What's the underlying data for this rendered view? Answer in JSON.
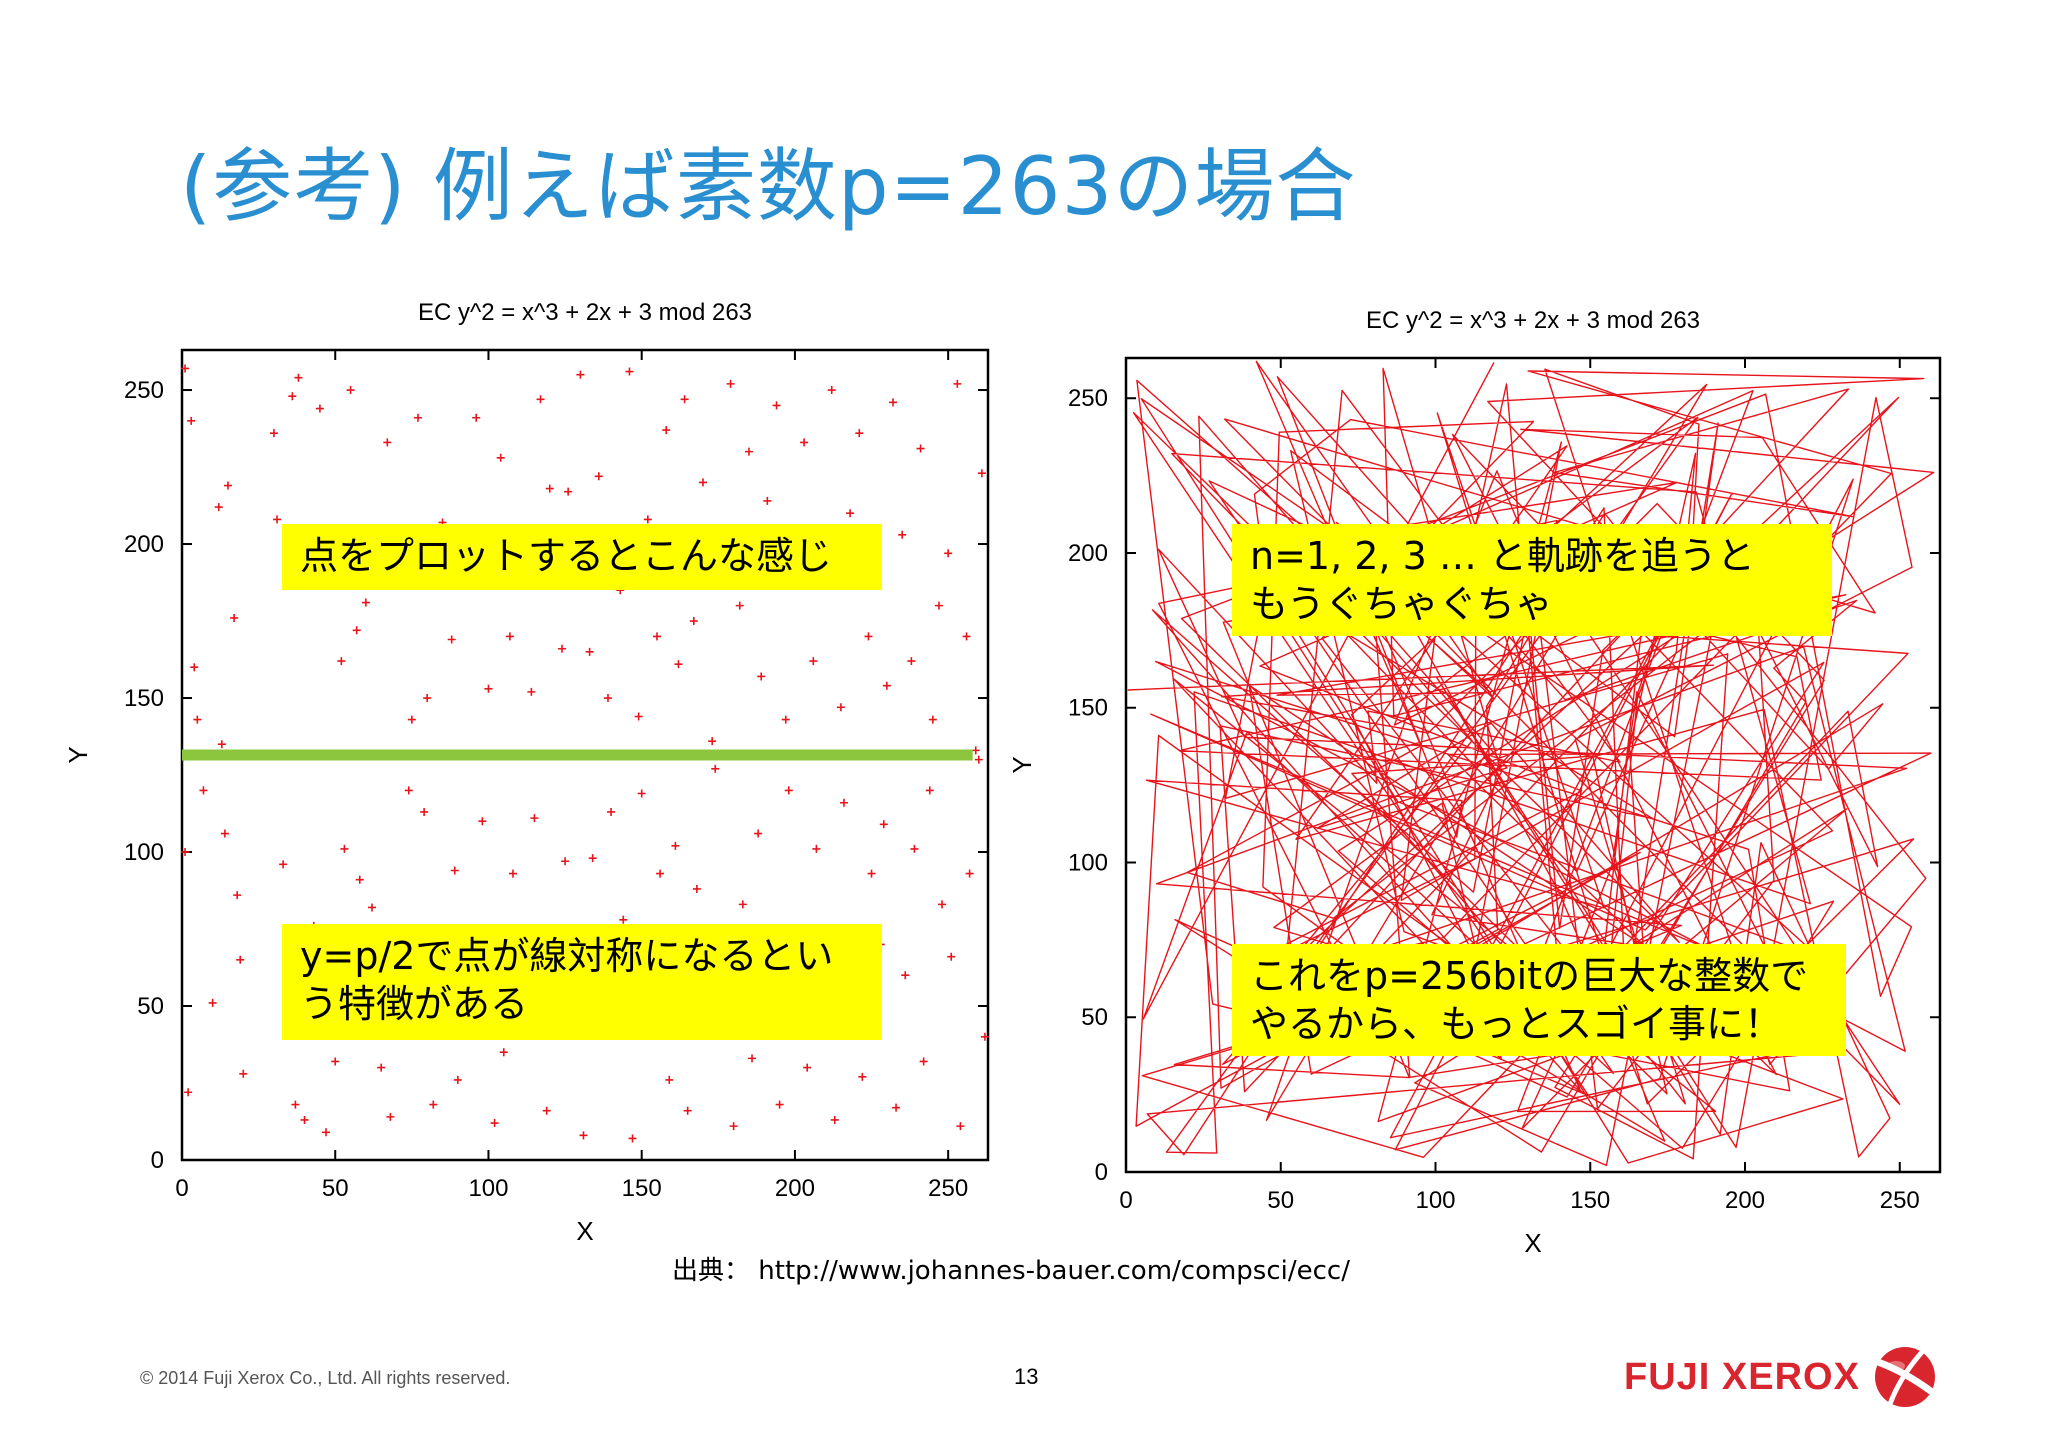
{
  "slide": {
    "title": "(参考) 例えば素数p=263の場合",
    "source": "出典： http://www.johannes-bauer.com/compsci/ecc/",
    "copyright": "© 2014 Fuji Xerox Co., Ltd. All rights reserved.",
    "page_number": "13",
    "logo_text": "FUJI XEROX",
    "logo_icon": "fuji-xerox-x-sphere-icon"
  },
  "callouts": {
    "left_top": "点をプロットするとこんな感じ",
    "left_bottom_1": "y=p/2で点が線対称になるとい",
    "left_bottom_2": "う特徴がある",
    "right_top_1": "n=1, 2, 3 … と軌跡を追うと",
    "right_top_2": "もうぐちゃぐちゃ",
    "right_bottom_1": "これをp=256bitの巨大な整数で",
    "right_bottom_2": "やるから、もっとスゴイ事に！"
  },
  "colors": {
    "title": "#2a8fd0",
    "points": "#e8141b",
    "symmetry_line": "#8cc63f",
    "callout_bg": "#ffff00"
  },
  "chart_data": [
    {
      "type": "scatter",
      "title": "EC y^2 = x^3 + 2x + 3 mod 263",
      "xlabel": "X",
      "ylabel": "Y",
      "xlim": [
        0,
        263
      ],
      "ylim": [
        0,
        263
      ],
      "xticks": [
        0,
        50,
        100,
        150,
        200,
        250
      ],
      "yticks": [
        0,
        50,
        100,
        150,
        200,
        250
      ],
      "marker": "+",
      "reference_line_y": 131.5,
      "points": [
        [
          1,
          257
        ],
        [
          3,
          240
        ],
        [
          4,
          160
        ],
        [
          1,
          100
        ],
        [
          2,
          22
        ],
        [
          5,
          143
        ],
        [
          7,
          120
        ],
        [
          10,
          51
        ],
        [
          12,
          212
        ],
        [
          13,
          135
        ],
        [
          14,
          106
        ],
        [
          15,
          219
        ],
        [
          17,
          176
        ],
        [
          18,
          86
        ],
        [
          19,
          65
        ],
        [
          20,
          28
        ],
        [
          30,
          236
        ],
        [
          31,
          208
        ],
        [
          33,
          96
        ],
        [
          34,
          55
        ],
        [
          36,
          248
        ],
        [
          37,
          18
        ],
        [
          38,
          254
        ],
        [
          40,
          13
        ],
        [
          42,
          188
        ],
        [
          43,
          76
        ],
        [
          45,
          244
        ],
        [
          47,
          9
        ],
        [
          50,
          32
        ],
        [
          52,
          162
        ],
        [
          53,
          101
        ],
        [
          55,
          250
        ],
        [
          57,
          172
        ],
        [
          58,
          91
        ],
        [
          60,
          181
        ],
        [
          62,
          82
        ],
        [
          65,
          30
        ],
        [
          67,
          233
        ],
        [
          68,
          14
        ],
        [
          70,
          196
        ],
        [
          72,
          67
        ],
        [
          74,
          120
        ],
        [
          75,
          143
        ],
        [
          77,
          241
        ],
        [
          79,
          113
        ],
        [
          80,
          150
        ],
        [
          82,
          18
        ],
        [
          85,
          207
        ],
        [
          86,
          56
        ],
        [
          88,
          169
        ],
        [
          89,
          94
        ],
        [
          90,
          26
        ],
        [
          92,
          200
        ],
        [
          94,
          63
        ],
        [
          96,
          241
        ],
        [
          98,
          110
        ],
        [
          100,
          153
        ],
        [
          102,
          12
        ],
        [
          104,
          228
        ],
        [
          105,
          35
        ],
        [
          107,
          170
        ],
        [
          108,
          93
        ],
        [
          110,
          188
        ],
        [
          112,
          75
        ],
        [
          114,
          152
        ],
        [
          115,
          111
        ],
        [
          117,
          247
        ],
        [
          119,
          16
        ],
        [
          120,
          218
        ],
        [
          122,
          45
        ],
        [
          124,
          166
        ],
        [
          125,
          97
        ],
        [
          126,
          217
        ],
        [
          128,
          46
        ],
        [
          130,
          255
        ],
        [
          131,
          8
        ],
        [
          133,
          165
        ],
        [
          134,
          98
        ],
        [
          136,
          222
        ],
        [
          137,
          41
        ],
        [
          139,
          150
        ],
        [
          140,
          113
        ],
        [
          143,
          185
        ],
        [
          144,
          78
        ],
        [
          146,
          256
        ],
        [
          147,
          7
        ],
        [
          149,
          144
        ],
        [
          150,
          119
        ],
        [
          152,
          208
        ],
        [
          153,
          55
        ],
        [
          155,
          170
        ],
        [
          156,
          93
        ],
        [
          158,
          237
        ],
        [
          159,
          26
        ],
        [
          161,
          102
        ],
        [
          162,
          161
        ],
        [
          164,
          247
        ],
        [
          165,
          16
        ],
        [
          167,
          175
        ],
        [
          168,
          88
        ],
        [
          170,
          220
        ],
        [
          171,
          43
        ],
        [
          173,
          136
        ],
        [
          174,
          127
        ],
        [
          176,
          198
        ],
        [
          177,
          65
        ],
        [
          179,
          252
        ],
        [
          180,
          11
        ],
        [
          182,
          180
        ],
        [
          183,
          83
        ],
        [
          185,
          230
        ],
        [
          186,
          33
        ],
        [
          188,
          106
        ],
        [
          189,
          157
        ],
        [
          191,
          214
        ],
        [
          192,
          49
        ],
        [
          194,
          245
        ],
        [
          195,
          18
        ],
        [
          197,
          143
        ],
        [
          198,
          120
        ],
        [
          200,
          188
        ],
        [
          201,
          75
        ],
        [
          203,
          233
        ],
        [
          204,
          30
        ],
        [
          206,
          162
        ],
        [
          207,
          101
        ],
        [
          209,
          205
        ],
        [
          210,
          58
        ],
        [
          212,
          250
        ],
        [
          213,
          13
        ],
        [
          215,
          147
        ],
        [
          216,
          116
        ],
        [
          218,
          210
        ],
        [
          219,
          53
        ],
        [
          221,
          236
        ],
        [
          222,
          27
        ],
        [
          224,
          170
        ],
        [
          225,
          93
        ],
        [
          227,
          193
        ],
        [
          228,
          70
        ],
        [
          229,
          109
        ],
        [
          230,
          154
        ],
        [
          232,
          246
        ],
        [
          233,
          17
        ],
        [
          235,
          203
        ],
        [
          236,
          60
        ],
        [
          238,
          162
        ],
        [
          239,
          101
        ],
        [
          241,
          231
        ],
        [
          242,
          32
        ],
        [
          244,
          120
        ],
        [
          245,
          143
        ],
        [
          247,
          180
        ],
        [
          248,
          83
        ],
        [
          250,
          197
        ],
        [
          251,
          66
        ],
        [
          253,
          252
        ],
        [
          254,
          11
        ],
        [
          256,
          170
        ],
        [
          257,
          93
        ],
        [
          259,
          133
        ],
        [
          260,
          130
        ],
        [
          261,
          223
        ],
        [
          262,
          40
        ]
      ]
    },
    {
      "type": "line",
      "title": "EC y^2 = x^3 + 2x + 3 mod 263",
      "xlabel": "X",
      "ylabel": "Y",
      "xlim": [
        0,
        263
      ],
      "ylim": [
        0,
        263
      ],
      "xticks": [
        0,
        50,
        100,
        150,
        200,
        250
      ],
      "yticks": [
        0,
        50,
        100,
        150,
        200,
        250
      ],
      "trajectory_seed": 263,
      "trajectory_length": 263
    }
  ]
}
